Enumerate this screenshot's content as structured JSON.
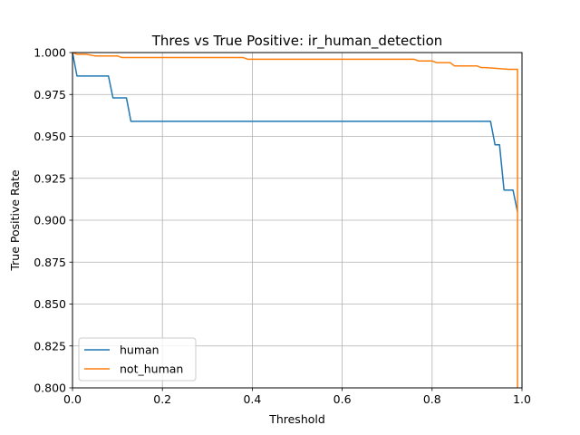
{
  "chart_data": {
    "type": "line",
    "title": "Thres vs True Positive: ir_human_detection",
    "xlabel": "Threshold",
    "ylabel": "True Positive Rate",
    "xlim": [
      0,
      1
    ],
    "ylim": [
      0.8,
      1.0
    ],
    "xticks": [
      "0.0",
      "0.2",
      "0.4",
      "0.6",
      "0.8",
      "1.0"
    ],
    "yticks": [
      "0.800",
      "0.825",
      "0.850",
      "0.875",
      "0.900",
      "0.925",
      "0.950",
      "0.975",
      "1.000"
    ],
    "grid": true,
    "legend_position": "lower-left",
    "series": [
      {
        "name": "human",
        "color": "#1f77b4",
        "x": [
          0.0,
          0.01,
          0.02,
          0.08,
          0.09,
          0.12,
          0.13,
          0.93,
          0.94,
          0.95,
          0.96,
          0.98,
          0.99
        ],
        "y": [
          1.0,
          0.986,
          0.986,
          0.986,
          0.973,
          0.973,
          0.959,
          0.959,
          0.945,
          0.945,
          0.918,
          0.918,
          0.905
        ]
      },
      {
        "name": "not_human",
        "color": "#ff7f0e",
        "x": [
          0.0,
          0.01,
          0.03,
          0.05,
          0.1,
          0.11,
          0.38,
          0.39,
          0.76,
          0.77,
          0.8,
          0.81,
          0.84,
          0.85,
          0.89,
          0.9,
          0.91,
          0.92,
          0.97,
          0.98,
          0.99,
          0.99
        ],
        "y": [
          1.0,
          0.999,
          0.999,
          0.998,
          0.998,
          0.997,
          0.997,
          0.996,
          0.996,
          0.995,
          0.995,
          0.994,
          0.994,
          0.992,
          0.992,
          0.992,
          0.991,
          0.991,
          0.99,
          0.99,
          0.99,
          0.8
        ]
      }
    ]
  }
}
